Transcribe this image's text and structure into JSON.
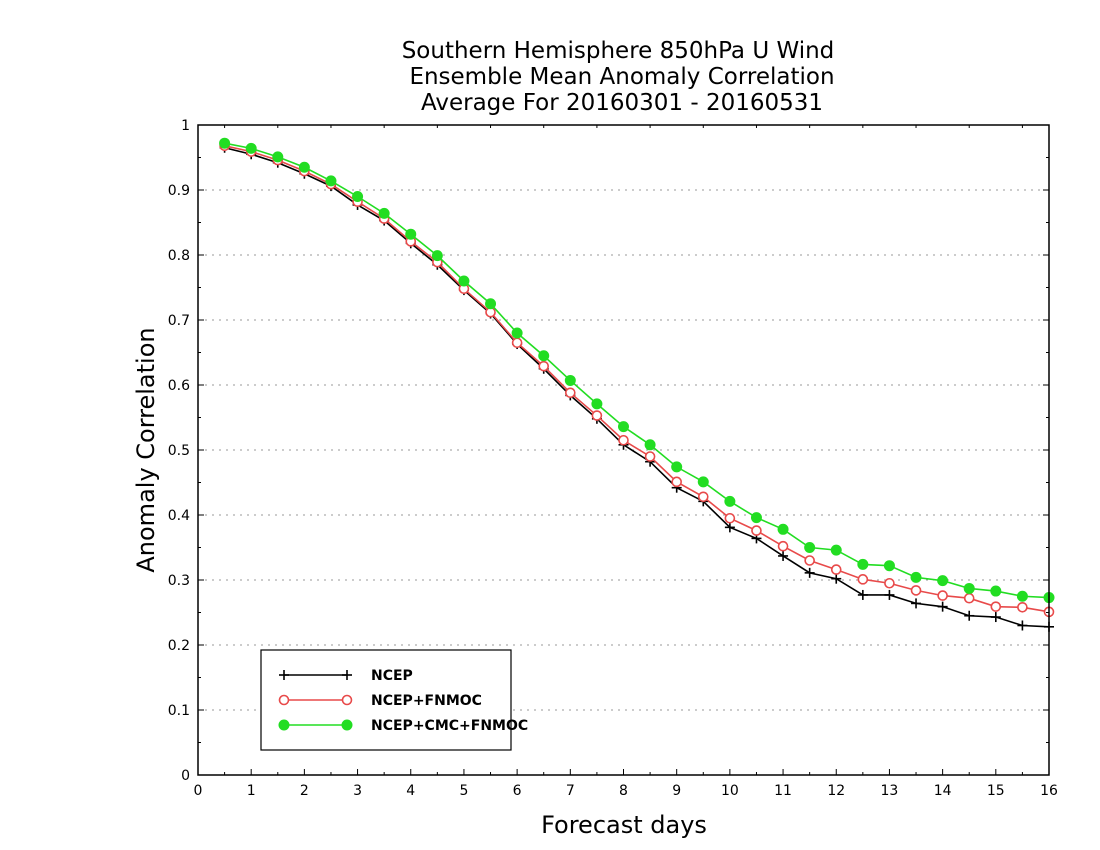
{
  "chart_data": {
    "type": "line",
    "title_lines": [
      "Southern Hemisphere 850hPa U Wind",
      "Ensemble Mean Anomaly Correlation",
      "Average For 20160301 - 20160531"
    ],
    "xlabel": "Forecast days",
    "ylabel": "Anomaly Correlation",
    "xlim": [
      0,
      16
    ],
    "ylim": [
      0,
      1
    ],
    "x_ticks": [
      "0",
      "1",
      "2",
      "3",
      "4",
      "5",
      "6",
      "7",
      "8",
      "9",
      "10",
      "11",
      "12",
      "13",
      "14",
      "15",
      "16"
    ],
    "y_ticks": [
      "0",
      "0.1",
      "0.2",
      "0.3",
      "0.4",
      "0.5",
      "0.6",
      "0.7",
      "0.8",
      "0.9",
      "1"
    ],
    "grid": "horizontal dotted",
    "legend_position": "bottom-left",
    "x": [
      0.5,
      1,
      1.5,
      2,
      2.5,
      3,
      3.5,
      4,
      4.5,
      5,
      5.5,
      6,
      6.5,
      7,
      7.5,
      8,
      8.5,
      9,
      9.5,
      10,
      10.5,
      11,
      11.5,
      12,
      12.5,
      13,
      13.5,
      14,
      14.5,
      15,
      15.5,
      16
    ],
    "series": [
      {
        "name": "NCEP",
        "color": "#000000",
        "marker": "plus",
        "values": [
          0.965,
          0.955,
          0.942,
          0.925,
          0.906,
          0.877,
          0.853,
          0.818,
          0.785,
          0.746,
          0.71,
          0.663,
          0.625,
          0.584,
          0.548,
          0.508,
          0.482,
          0.442,
          0.421,
          0.381,
          0.364,
          0.337,
          0.311,
          0.302,
          0.277,
          0.277,
          0.264,
          0.259,
          0.245,
          0.243,
          0.23,
          0.228
        ]
      },
      {
        "name": "NCEP+FNMOC",
        "color": "#e84a4a",
        "marker": "open-circle",
        "values": [
          0.968,
          0.959,
          0.946,
          0.929,
          0.909,
          0.882,
          0.856,
          0.821,
          0.789,
          0.748,
          0.712,
          0.665,
          0.629,
          0.588,
          0.553,
          0.515,
          0.49,
          0.451,
          0.428,
          0.395,
          0.376,
          0.352,
          0.33,
          0.316,
          0.301,
          0.295,
          0.284,
          0.276,
          0.272,
          0.259,
          0.258,
          0.251
        ]
      },
      {
        "name": "NCEP+CMC+FNMOC",
        "color": "#22dd22",
        "marker": "filled-circle",
        "values": [
          0.972,
          0.964,
          0.951,
          0.935,
          0.914,
          0.89,
          0.864,
          0.832,
          0.799,
          0.76,
          0.725,
          0.68,
          0.645,
          0.607,
          0.571,
          0.536,
          0.508,
          0.474,
          0.451,
          0.421,
          0.396,
          0.378,
          0.35,
          0.346,
          0.324,
          0.322,
          0.304,
          0.299,
          0.287,
          0.283,
          0.275,
          0.273
        ]
      }
    ]
  }
}
